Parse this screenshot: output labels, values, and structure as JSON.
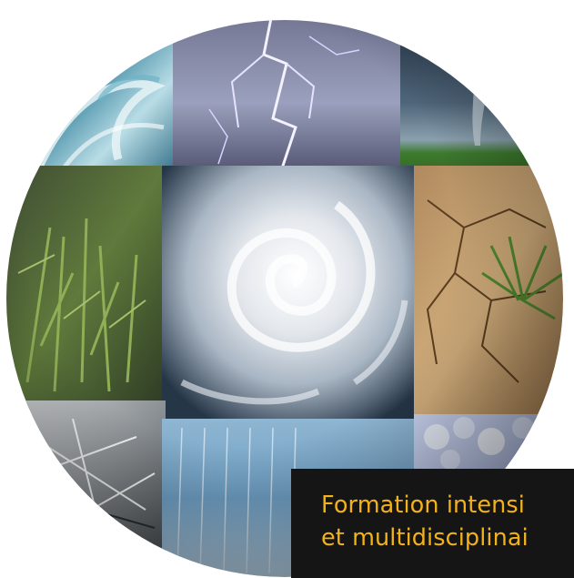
{
  "caption": {
    "line1": "Formation intensi",
    "line2": "et multidisciplinai"
  },
  "colors": {
    "caption_background": "#161515",
    "caption_text": "#f2b21a",
    "page_background": "#ffffff"
  },
  "tiles": [
    {
      "name": "ocean-wave-tile",
      "depicts": "ocean-wave"
    },
    {
      "name": "lightning-storm-tile",
      "depicts": "lightning"
    },
    {
      "name": "tornado-tile",
      "depicts": "tornado"
    },
    {
      "name": "wet-grass-tile",
      "depicts": "grass-rain"
    },
    {
      "name": "hurricane-satellite-tile",
      "depicts": "hurricane"
    },
    {
      "name": "drought-cracked-earth-tile",
      "depicts": "drought"
    },
    {
      "name": "frost-twigs-tile",
      "depicts": "frost"
    },
    {
      "name": "heavy-rain-tile",
      "depicts": "rain"
    },
    {
      "name": "hailstones-tile",
      "depicts": "hail"
    }
  ]
}
